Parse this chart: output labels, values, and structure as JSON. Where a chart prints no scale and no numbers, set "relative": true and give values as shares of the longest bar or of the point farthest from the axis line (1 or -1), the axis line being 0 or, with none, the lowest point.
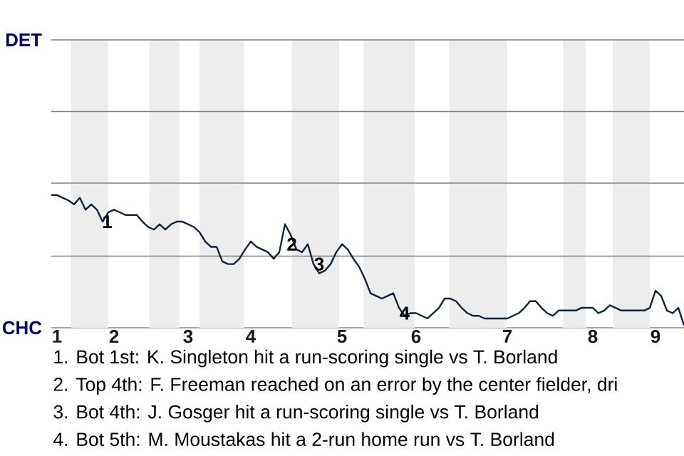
{
  "chart_data": {
    "type": "line",
    "relative": true,
    "categories": [
      null,
      "1",
      null,
      null,
      null,
      null,
      null,
      null,
      null,
      null,
      null,
      "2",
      null,
      null,
      null,
      null,
      null,
      null,
      null,
      null,
      null,
      null,
      null,
      null,
      "3",
      null,
      null,
      null,
      null,
      null,
      null,
      null,
      null,
      null,
      null,
      "4",
      null,
      null,
      null,
      null,
      null,
      null,
      null,
      null,
      null,
      null,
      null,
      null,
      null,
      null,
      null,
      "5",
      null,
      null,
      null,
      null,
      null,
      null,
      null,
      null,
      null,
      null,
      null,
      null,
      "6",
      null,
      null,
      null,
      null,
      null,
      null,
      null,
      null,
      null,
      null,
      null,
      null,
      null,
      null,
      null,
      "7",
      null,
      null,
      null,
      null,
      null,
      null,
      null,
      null,
      null,
      null,
      null,
      null,
      null,
      null,
      "8",
      null,
      null,
      null,
      null,
      null,
      null,
      null,
      null,
      null,
      null,
      "9",
      null,
      null,
      null,
      null,
      null
    ],
    "series": [
      {
        "color": "#0c2340",
        "values": [
          1,
          1,
          0.98,
          0.96,
          0.93,
          0.98,
          0.89,
          0.93,
          0.89,
          0.8,
          0.87,
          0.89,
          0.87,
          0.85,
          0.85,
          0.85,
          0.8,
          0.76,
          0.74,
          0.78,
          0.74,
          0.78,
          0.8,
          0.8,
          0.78,
          0.76,
          0.72,
          0.65,
          0.61,
          0.61,
          0.5,
          0.48,
          0.48,
          0.52,
          0.59,
          0.65,
          0.61,
          0.59,
          0.57,
          0.52,
          0.57,
          0.78,
          0.7,
          0.59,
          0.57,
          0.63,
          0.48,
          0.41,
          0.43,
          0.48,
          0.57,
          0.63,
          0.59,
          0.52,
          0.46,
          0.37,
          0.26,
          0.24,
          0.22,
          0.24,
          0.26,
          0.15,
          0.09,
          0.11,
          0.11,
          0.09,
          0.07,
          0.11,
          0.15,
          0.22,
          0.22,
          0.2,
          0.15,
          0.11,
          0.09,
          0.09,
          0.07,
          0.07,
          0.07,
          0.07,
          0.07,
          0.09,
          0.11,
          0.15,
          0.2,
          0.2,
          0.15,
          0.11,
          0.09,
          0.13,
          0.13,
          0.13,
          0.13,
          0.15,
          0.15,
          0.15,
          0.11,
          0.13,
          0.17,
          0.15,
          0.13,
          0.13,
          0.13,
          0.13,
          0.13,
          0.15,
          0.28,
          0.24,
          0.13,
          0.11,
          0.15,
          0.02
        ]
      }
    ],
    "ref_lines": [
      {
        "axis": "y",
        "value": 0.54,
        "color": "#808080"
      },
      {
        "axis": "y",
        "value": 1.09,
        "color": "#808080"
      },
      {
        "axis": "y",
        "value": 1.63,
        "color": "#808080"
      },
      {
        "axis": "y",
        "value": 2.17,
        "color": "#808080"
      }
    ],
    "annotations": [
      "DET",
      "CHC",
      {
        "text": "1",
        "y": 0.8
      },
      {
        "text": "2",
        "y": 0.63
      },
      {
        "text": "3",
        "y": 0.48
      },
      {
        "text": "4",
        "y": 0.11
      },
      "1. Bot 1st: K. Singleton hit a run-scoring single vs T. Borland",
      "2. Top 4th: F. Freeman reached on an error by the center fielder, dri",
      "3. Bot 4th: J. Gosger hit a run-scoring single vs T. Borland",
      "4. Bot 5th: M. Moustakas hit a 2-run home run vs T. Borland"
    ]
  }
}
